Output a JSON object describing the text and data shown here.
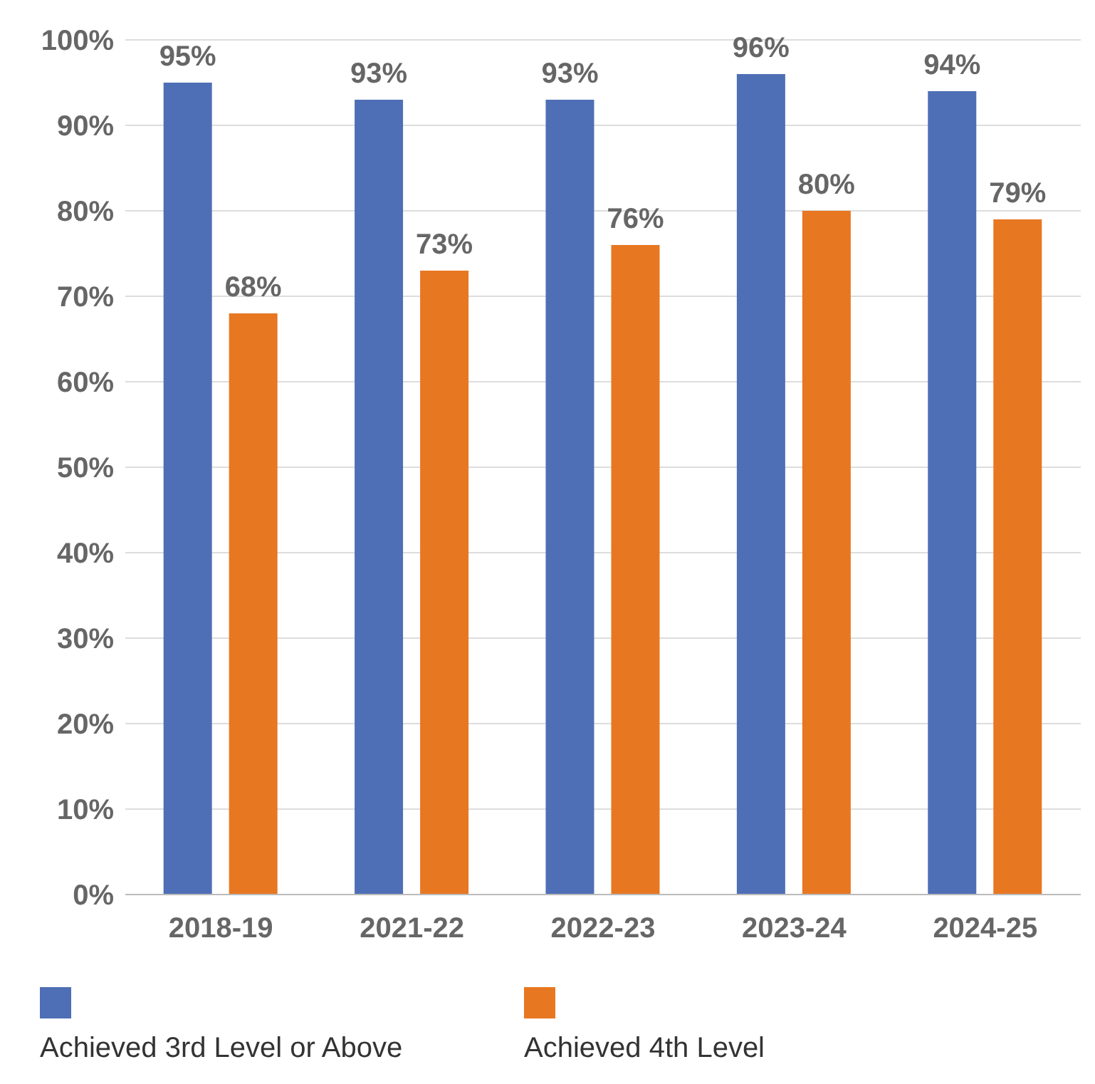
{
  "chart_data": {
    "type": "bar",
    "categories": [
      "2018-19",
      "2021-22",
      "2022-23",
      "2023-24",
      "2024-25"
    ],
    "series": [
      {
        "name": "Achieved 3rd Level or Above",
        "color": "#4e6fb5",
        "values": [
          95,
          93,
          93,
          96,
          94
        ],
        "value_labels": [
          "95%",
          "93%",
          "93%",
          "96%",
          "94%"
        ]
      },
      {
        "name": "Achieved 4th Level",
        "color": "#e87722",
        "values": [
          68,
          73,
          76,
          80,
          79
        ],
        "value_labels": [
          "68%",
          "73%",
          "76%",
          "80%",
          "79%"
        ]
      }
    ],
    "ylim": [
      0,
      100
    ],
    "yticks": [
      {
        "value": 0,
        "label": "0%"
      },
      {
        "value": 10,
        "label": "10%"
      },
      {
        "value": 20,
        "label": "20%"
      },
      {
        "value": 30,
        "label": "30%"
      },
      {
        "value": 40,
        "label": "40%"
      },
      {
        "value": 50,
        "label": "50%"
      },
      {
        "value": 60,
        "label": "60%"
      },
      {
        "value": 70,
        "label": "70%"
      },
      {
        "value": 80,
        "label": "80%"
      },
      {
        "value": 90,
        "label": "90%"
      },
      {
        "value": 100,
        "label": "100%"
      }
    ],
    "grid": "y",
    "legend": "bottom"
  }
}
